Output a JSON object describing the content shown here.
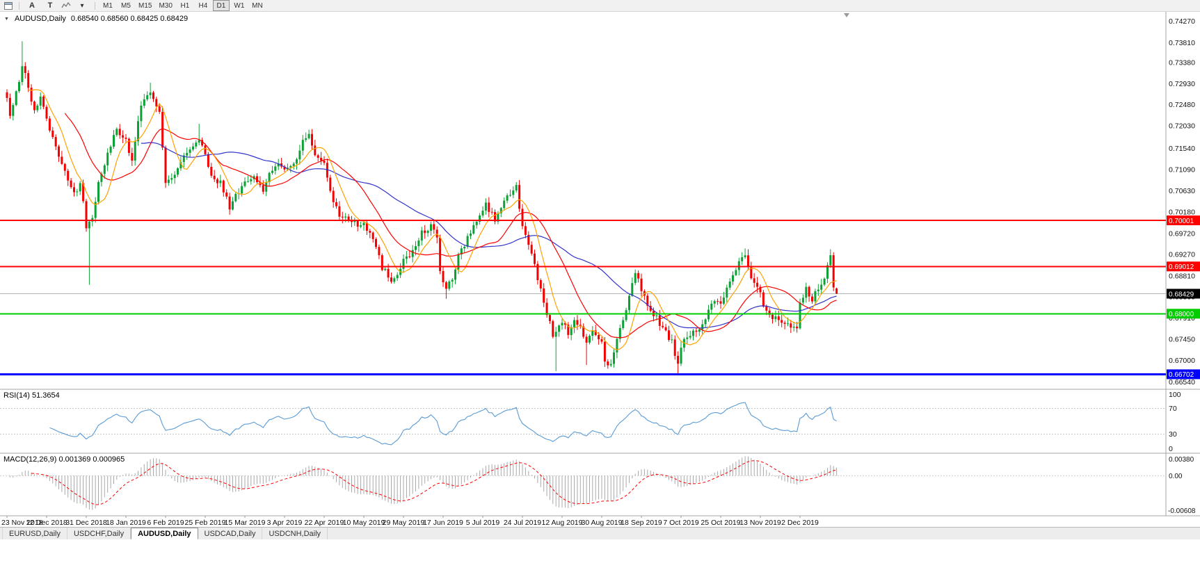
{
  "toolbar": {
    "buttons": [
      {
        "label": "A"
      },
      {
        "label": "T"
      }
    ],
    "caret": "▾",
    "timeframes": [
      "M1",
      "M5",
      "M15",
      "M30",
      "H1",
      "H4",
      "D1",
      "W1",
      "MN"
    ],
    "active_timeframe": "D1"
  },
  "chart": {
    "collapse_icon": "▼",
    "title": "AUDUSD,Daily",
    "ohlc_text": "0.68540 0.68560 0.68425 0.68429"
  },
  "indicators": {
    "rsi": {
      "title": "RSI(14) 51.3654",
      "axis_labels": [
        "100",
        "70",
        "30",
        "0"
      ],
      "levels": [
        70,
        30
      ]
    },
    "macd": {
      "title": "MACD(12,26,9) 0.001369 0.000965",
      "axis_labels": [
        "0.00380",
        "0.00",
        "-0.00608"
      ]
    }
  },
  "price_axis": {
    "labels": [
      "0.74270",
      "0.73810",
      "0.73380",
      "0.72930",
      "0.72480",
      "0.72030",
      "0.71540",
      "0.71090",
      "0.70630",
      "0.70180",
      "0.69720",
      "0.69270",
      "0.68810",
      "0.68360",
      "0.67910",
      "0.67450",
      "0.67000",
      "0.66540"
    ]
  },
  "hlines": [
    {
      "name": "resistance-line-1",
      "label": "0.70001",
      "price": 0.70001,
      "color": "#ff0000",
      "width": 2
    },
    {
      "name": "resistance-line-2",
      "label": "0.69012",
      "price": 0.69012,
      "color": "#ff0000",
      "width": 2
    },
    {
      "name": "support-line-green",
      "label": "0.68000",
      "price": 0.68,
      "color": "#00cc00",
      "width": 2
    },
    {
      "name": "support-line-blue",
      "label": "0.66702",
      "price": 0.66702,
      "color": "#0000ff",
      "width": 3
    }
  ],
  "current_price": {
    "label": "0.68429",
    "price": 0.68429,
    "color": "#000000"
  },
  "date_axis": {
    "labels": [
      "23 Nov 2018",
      "12 Dec 2018",
      "31 Dec 2018",
      "18 Jan 2019",
      "6 Feb 2019",
      "25 Feb 2019",
      "15 Mar 2019",
      "3 Apr 2019",
      "22 Apr 2019",
      "10 May 2019",
      "29 May 2019",
      "17 Jun 2019",
      "5 Jul 2019",
      "24 Jul 2019",
      "12 Aug 2019",
      "30 Aug 2019",
      "18 Sep 2019",
      "7 Oct 2019",
      "25 Oct 2019",
      "13 Nov 2019",
      "2 Dec 2019"
    ]
  },
  "tabs": [
    {
      "id": "eurusd",
      "label": "EURUSD,Daily",
      "active": false
    },
    {
      "id": "usdchf",
      "label": "USDCHF,Daily",
      "active": false
    },
    {
      "id": "audusd",
      "label": "AUDUSD,Daily",
      "active": true
    },
    {
      "id": "usdcad",
      "label": "USDCAD,Daily",
      "active": false
    },
    {
      "id": "usdcnh",
      "label": "USDCNH,Daily",
      "active": false
    }
  ],
  "colors": {
    "up": "#0ca135",
    "down": "#f40000",
    "rsi": "#5a9bd5",
    "histogram": "#a8a8a8",
    "signal": "#ff0000",
    "axis_text": "#111111"
  },
  "chart_data": {
    "type": "candlestick",
    "symbol": "AUDUSD",
    "timeframe": "Daily",
    "price_range": [
      0.6638,
      0.7447
    ],
    "price": {
      "bars": 273,
      "anchors": [
        [
          0,
          0.726
        ],
        [
          1,
          0.7225
        ],
        [
          3,
          0.727
        ],
        [
          5,
          0.733
        ],
        [
          7,
          0.729
        ],
        [
          9,
          0.723
        ],
        [
          11,
          0.7268
        ],
        [
          13,
          0.7215
        ],
        [
          16,
          0.716
        ],
        [
          19,
          0.71
        ],
        [
          22,
          0.7055
        ],
        [
          24,
          0.7082
        ],
        [
          25,
          0.7042
        ],
        [
          26,
          0.6982
        ],
        [
          27,
          0.6992
        ],
        [
          28,
          0.7008
        ],
        [
          30,
          0.7085
        ],
        [
          33,
          0.714
        ],
        [
          36,
          0.72
        ],
        [
          39,
          0.7168
        ],
        [
          41,
          0.713
        ],
        [
          44,
          0.725
        ],
        [
          47,
          0.7272
        ],
        [
          50,
          0.723
        ],
        [
          51,
          0.715
        ],
        [
          52,
          0.7085
        ],
        [
          55,
          0.71
        ],
        [
          58,
          0.7142
        ],
        [
          61,
          0.716
        ],
        [
          63,
          0.7172
        ],
        [
          65,
          0.714
        ],
        [
          67,
          0.709
        ],
        [
          70,
          0.708
        ],
        [
          73,
          0.703
        ],
        [
          76,
          0.706
        ],
        [
          78,
          0.7082
        ],
        [
          81,
          0.7092
        ],
        [
          84,
          0.7065
        ],
        [
          87,
          0.711
        ],
        [
          89,
          0.7122
        ],
        [
          91,
          0.7112
        ],
        [
          94,
          0.712
        ],
        [
          97,
          0.7168
        ],
        [
          99,
          0.7182
        ],
        [
          101,
          0.714
        ],
        [
          104,
          0.7126
        ],
        [
          106,
          0.706
        ],
        [
          109,
          0.7012
        ],
        [
          112,
          0.7005
        ],
        [
          115,
          0.6992
        ],
        [
          117,
          0.6996
        ],
        [
          120,
          0.696
        ],
        [
          123,
          0.69
        ],
        [
          126,
          0.6872
        ],
        [
          129,
          0.6896
        ],
        [
          130,
          0.692
        ],
        [
          133,
          0.6932
        ],
        [
          136,
          0.6972
        ],
        [
          139,
          0.699
        ],
        [
          141,
          0.696
        ],
        [
          142,
          0.6892
        ],
        [
          144,
          0.6852
        ],
        [
          146,
          0.6875
        ],
        [
          148,
          0.6922
        ],
        [
          151,
          0.6962
        ],
        [
          154,
          0.7
        ],
        [
          157,
          0.7032
        ],
        [
          160,
          0.7002
        ],
        [
          163,
          0.7042
        ],
        [
          167,
          0.7072
        ],
        [
          169,
          0.6982
        ],
        [
          171,
          0.6952
        ],
        [
          173,
          0.6902
        ],
        [
          175,
          0.6852
        ],
        [
          177,
          0.68
        ],
        [
          179,
          0.6756
        ],
        [
          180,
          0.6762
        ],
        [
          182,
          0.6786
        ],
        [
          184,
          0.6756
        ],
        [
          186,
          0.6782
        ],
        [
          188,
          0.6766
        ],
        [
          190,
          0.6742
        ],
        [
          192,
          0.6766
        ],
        [
          195,
          0.6736
        ],
        [
          196,
          0.6702
        ],
        [
          198,
          0.669
        ],
        [
          200,
          0.6742
        ],
        [
          203,
          0.6812
        ],
        [
          206,
          0.6885
        ],
        [
          208,
          0.6852
        ],
        [
          210,
          0.682
        ],
        [
          213,
          0.679
        ],
        [
          216,
          0.676
        ],
        [
          218,
          0.674
        ],
        [
          219,
          0.6712
        ],
        [
          220,
          0.6686
        ],
        [
          221,
          0.6732
        ],
        [
          223,
          0.6746
        ],
        [
          226,
          0.6762
        ],
        [
          229,
          0.6792
        ],
        [
          232,
          0.6826
        ],
        [
          234,
          0.6822
        ],
        [
          236,
          0.6852
        ],
        [
          238,
          0.6886
        ],
        [
          240,
          0.691
        ],
        [
          242,
          0.6922
        ],
        [
          244,
          0.688
        ],
        [
          246,
          0.6862
        ],
        [
          247,
          0.6842
        ],
        [
          249,
          0.6802
        ],
        [
          251,
          0.6792
        ],
        [
          253,
          0.6786
        ],
        [
          255,
          0.6772
        ],
        [
          257,
          0.6776
        ],
        [
          259,
          0.6772
        ],
        [
          260,
          0.682
        ],
        [
          262,
          0.6852
        ],
        [
          264,
          0.6832
        ],
        [
          266,
          0.6856
        ],
        [
          268,
          0.6882
        ],
        [
          270,
          0.693
        ],
        [
          271,
          0.6855
        ],
        [
          272,
          0.68429
        ]
      ],
      "wicks": [
        {
          "i": 5,
          "high": 0.7384
        },
        {
          "i": 27,
          "low": 0.6862
        },
        {
          "i": 47,
          "high": 0.7295
        },
        {
          "i": 63,
          "high": 0.7207
        },
        {
          "i": 99,
          "high": 0.7192
        },
        {
          "i": 126,
          "low": 0.6865
        },
        {
          "i": 144,
          "low": 0.6832
        },
        {
          "i": 167,
          "high": 0.7082
        },
        {
          "i": 180,
          "low": 0.6677
        },
        {
          "i": 190,
          "low": 0.669
        },
        {
          "i": 198,
          "low": 0.6688
        },
        {
          "i": 220,
          "low": 0.6671
        },
        {
          "i": 242,
          "high": 0.694
        },
        {
          "i": 270,
          "high": 0.6938
        }
      ],
      "last": {
        "o": 0.6854,
        "h": 0.6856,
        "l": 0.68425,
        "c": 0.68429
      }
    },
    "moving_averages": [
      {
        "name": "slow",
        "period": 45,
        "color": "#3333cc"
      },
      {
        "name": "mid",
        "period": 20,
        "color": "#ff0000"
      },
      {
        "name": "fast",
        "period": 8,
        "color": "#ffa200"
      }
    ],
    "rsi_period": 14,
    "macd": {
      "fast": 12,
      "slow": 26,
      "signal": 9
    }
  }
}
